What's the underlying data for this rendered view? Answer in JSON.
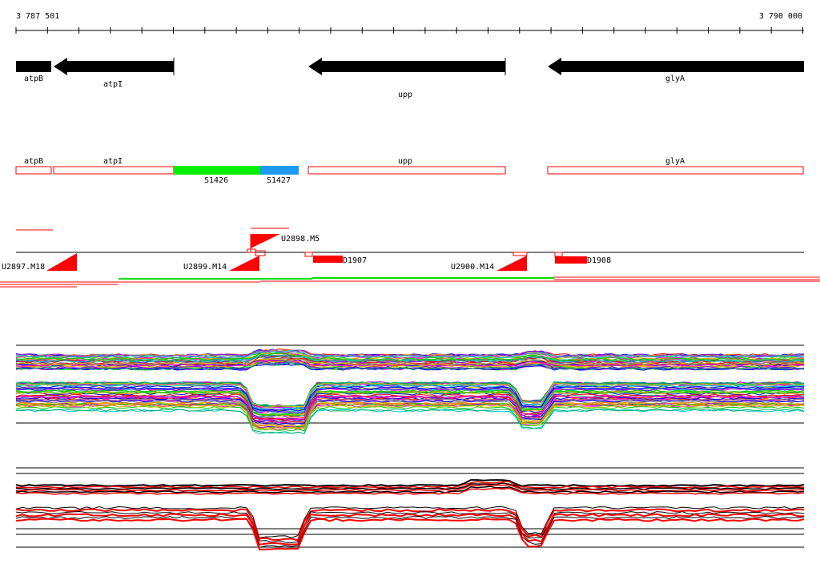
{
  "ruler": {
    "start_label": "3 787 501",
    "end_label": "3 790 000"
  },
  "genes": [
    {
      "name": "atpB",
      "label": "atpB",
      "strand": "-"
    },
    {
      "name": "atpI",
      "label": "atpI",
      "strand": "-"
    },
    {
      "name": "upp",
      "label": "upp",
      "strand": "-"
    },
    {
      "name": "glyA",
      "label": "glyA",
      "strand": "-"
    }
  ],
  "segments": [
    {
      "name": "atpB",
      "label": "atpB",
      "color": "#ff0000",
      "fill": "none"
    },
    {
      "name": "atpI",
      "label": "atpI",
      "color": "#ff0000",
      "fill": "none"
    },
    {
      "name": "S1426",
      "label": "S1426",
      "color": "#00ee00",
      "fill": "solid"
    },
    {
      "name": "S1427",
      "label": "S1427",
      "color": "#1e9bf0",
      "fill": "solid"
    },
    {
      "name": "upp",
      "label": "upp",
      "color": "#ff0000",
      "fill": "none"
    },
    {
      "name": "glyA",
      "label": "glyA",
      "color": "#ff0000",
      "fill": "none"
    }
  ],
  "transcripts": [
    {
      "label": "U2897.M18",
      "color": "#ff0000"
    },
    {
      "label": "U2898.M5",
      "color": "#ff0000"
    },
    {
      "label": "U2899.M14",
      "color": "#ff0000"
    },
    {
      "label": "D1907",
      "color": "#ff0000"
    },
    {
      "label": "U2900.M14",
      "color": "#ff0000"
    },
    {
      "label": "D1908",
      "color": "#ff0000"
    }
  ],
  "colors": {
    "gene_arrow": "#000000",
    "tracks": [
      "#ff0000",
      "#00cc00",
      "#0000ff",
      "#ff00ff",
      "#00cccc",
      "#cccc00",
      "#ff8800",
      "#8800ff",
      "#888888",
      "#00aa66"
    ],
    "condition_red": "#ff0000",
    "condition_black": "#000000"
  }
}
